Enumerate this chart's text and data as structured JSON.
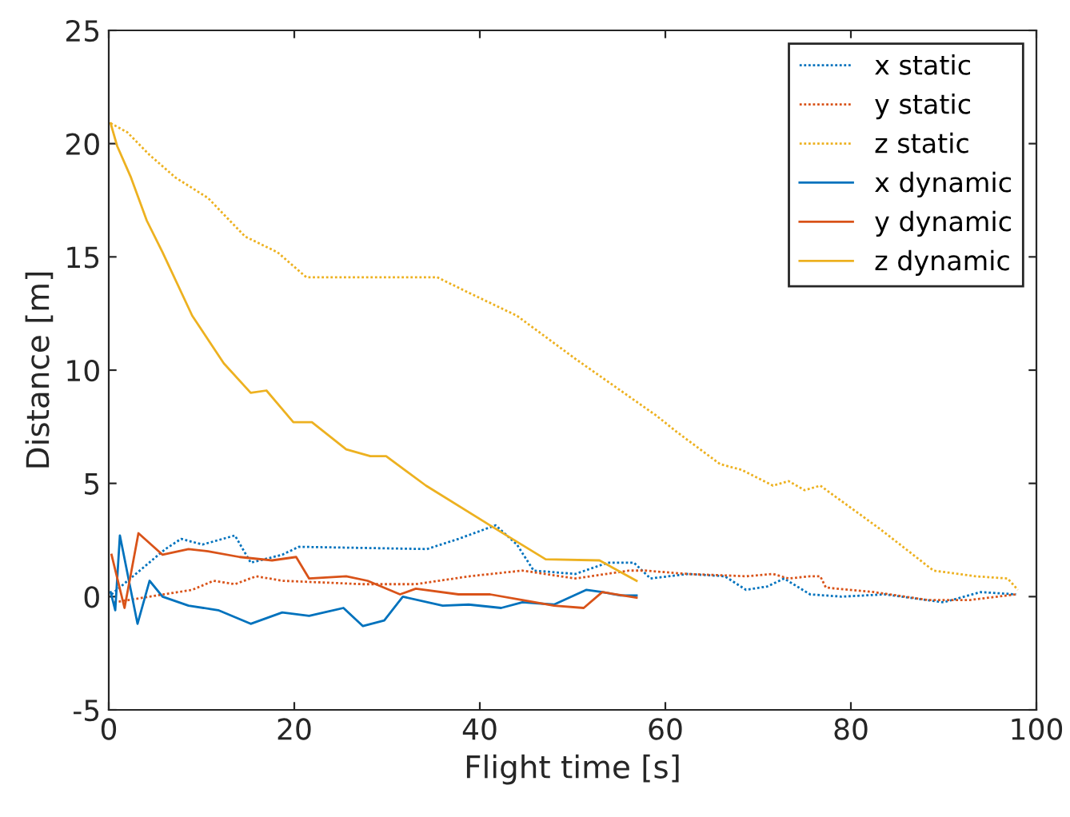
{
  "chart_data": {
    "type": "line",
    "xlabel": "Flight time [s]",
    "ylabel": "Distance [m]",
    "xlim": [
      0,
      100
    ],
    "ylim": [
      -5,
      25
    ],
    "xticks": [
      0,
      20,
      40,
      60,
      80,
      100
    ],
    "yticks": [
      -5,
      0,
      5,
      10,
      15,
      20,
      25
    ],
    "grid": false,
    "legend": "top right",
    "series": [
      {
        "name": "x static",
        "color": "#0072bd",
        "line_style": "dotted",
        "x": [
          0.3,
          6.1,
          7.8,
          10.1,
          13.6,
          15.3,
          18.7,
          20.5,
          34.3,
          37.7,
          41.7,
          44,
          45.8,
          50.3,
          53.8,
          56.6,
          58.4,
          62.4,
          66.4,
          68.7,
          71,
          72.8,
          75.6,
          79,
          83.7,
          90,
          94,
          97.8
        ],
        "values": [
          0.1,
          2.1,
          2.55,
          2.3,
          2.7,
          1.5,
          1.85,
          2.2,
          2.1,
          2.55,
          3.15,
          2.3,
          1.15,
          1.0,
          1.5,
          1.5,
          0.8,
          1.0,
          0.9,
          0.3,
          0.45,
          0.8,
          0.1,
          0,
          0.1,
          -0.25,
          0.2,
          0.1
        ]
      },
      {
        "name": "y static",
        "color": "#d95319",
        "line_style": "dotted",
        "x": [
          0.6,
          4.4,
          9,
          11.3,
          13.6,
          15.9,
          18.7,
          27.4,
          33.1,
          38.9,
          44.6,
          50.3,
          56.1,
          57.8,
          62.4,
          68.7,
          71.6,
          73.3,
          75.6,
          76.7,
          77.3,
          82.5,
          88.3,
          92.8,
          97.8
        ],
        "values": [
          -0.25,
          0,
          0.3,
          0.7,
          0.55,
          0.9,
          0.7,
          0.55,
          0.55,
          0.9,
          1.15,
          0.8,
          1.15,
          1.15,
          1.0,
          0.9,
          1.0,
          0.8,
          0.9,
          0.9,
          0.4,
          0.2,
          -0.15,
          -0.15,
          0.1
        ]
      },
      {
        "name": "z static",
        "color": "#edb120",
        "line_style": "dotted",
        "x": [
          0.2,
          2,
          4.4,
          7.2,
          10.7,
          14.7,
          18.2,
          21.3,
          35.4,
          38.9,
          44,
          50.3,
          59,
          61.3,
          65.9,
          68.2,
          71.6,
          73.3,
          75,
          76.7,
          83.1,
          88.9,
          93.4,
          96.9,
          98
        ],
        "values": [
          20.9,
          20.5,
          19.5,
          18.5,
          17.6,
          15.9,
          15.2,
          14.1,
          14.1,
          13.4,
          12.4,
          10.5,
          8.0,
          7.25,
          5.85,
          5.6,
          4.9,
          5.1,
          4.7,
          4.9,
          3.0,
          1.15,
          0.9,
          0.8,
          0.3
        ]
      },
      {
        "name": "x dynamic",
        "color": "#0072bd",
        "line_style": "solid",
        "x": [
          0.2,
          0.7,
          1.2,
          3.1,
          4.4,
          5.8,
          8.6,
          11.8,
          15.3,
          18.7,
          21.6,
          25.3,
          27.4,
          29.7,
          31.7,
          36,
          38.8,
          42.3,
          44.6,
          48,
          51.5,
          53.2,
          55.2,
          56.9
        ],
        "values": [
          0.2,
          -0.6,
          2.7,
          -1.2,
          0.7,
          0,
          -0.4,
          -0.6,
          -1.2,
          -0.7,
          -0.85,
          -0.5,
          -1.3,
          -1.05,
          0,
          -0.4,
          -0.35,
          -0.5,
          -0.25,
          -0.35,
          0.3,
          0.2,
          0.05,
          0.05
        ]
      },
      {
        "name": "y dynamic",
        "color": "#d95319",
        "line_style": "solid",
        "x": [
          0.3,
          1.7,
          3.2,
          5.8,
          8.6,
          10.7,
          14.1,
          17.6,
          20.2,
          21.6,
          25.6,
          27.9,
          31.4,
          33.1,
          37.7,
          41.1,
          44.6,
          48,
          51.2,
          53.2,
          56.9
        ],
        "values": [
          1.85,
          -0.5,
          2.8,
          1.85,
          2.1,
          2.0,
          1.75,
          1.6,
          1.75,
          0.8,
          0.9,
          0.7,
          0.1,
          0.35,
          0.1,
          0.1,
          -0.15,
          -0.4,
          -0.5,
          0.2,
          -0.05
        ]
      },
      {
        "name": "z dynamic",
        "color": "#edb120",
        "line_style": "solid",
        "x": [
          0.2,
          0.9,
          2.4,
          4.1,
          5.8,
          9,
          12.4,
          15.3,
          17,
          19.9,
          21.9,
          25.6,
          28.2,
          29.9,
          34.2,
          41.1,
          47.1,
          52.9,
          56.9
        ],
        "values": [
          20.9,
          19.9,
          18.5,
          16.6,
          15.2,
          12.4,
          10.3,
          9.0,
          9.1,
          7.7,
          7.7,
          6.5,
          6.2,
          6.2,
          4.9,
          3.15,
          1.65,
          1.6,
          0.7
        ]
      }
    ]
  }
}
